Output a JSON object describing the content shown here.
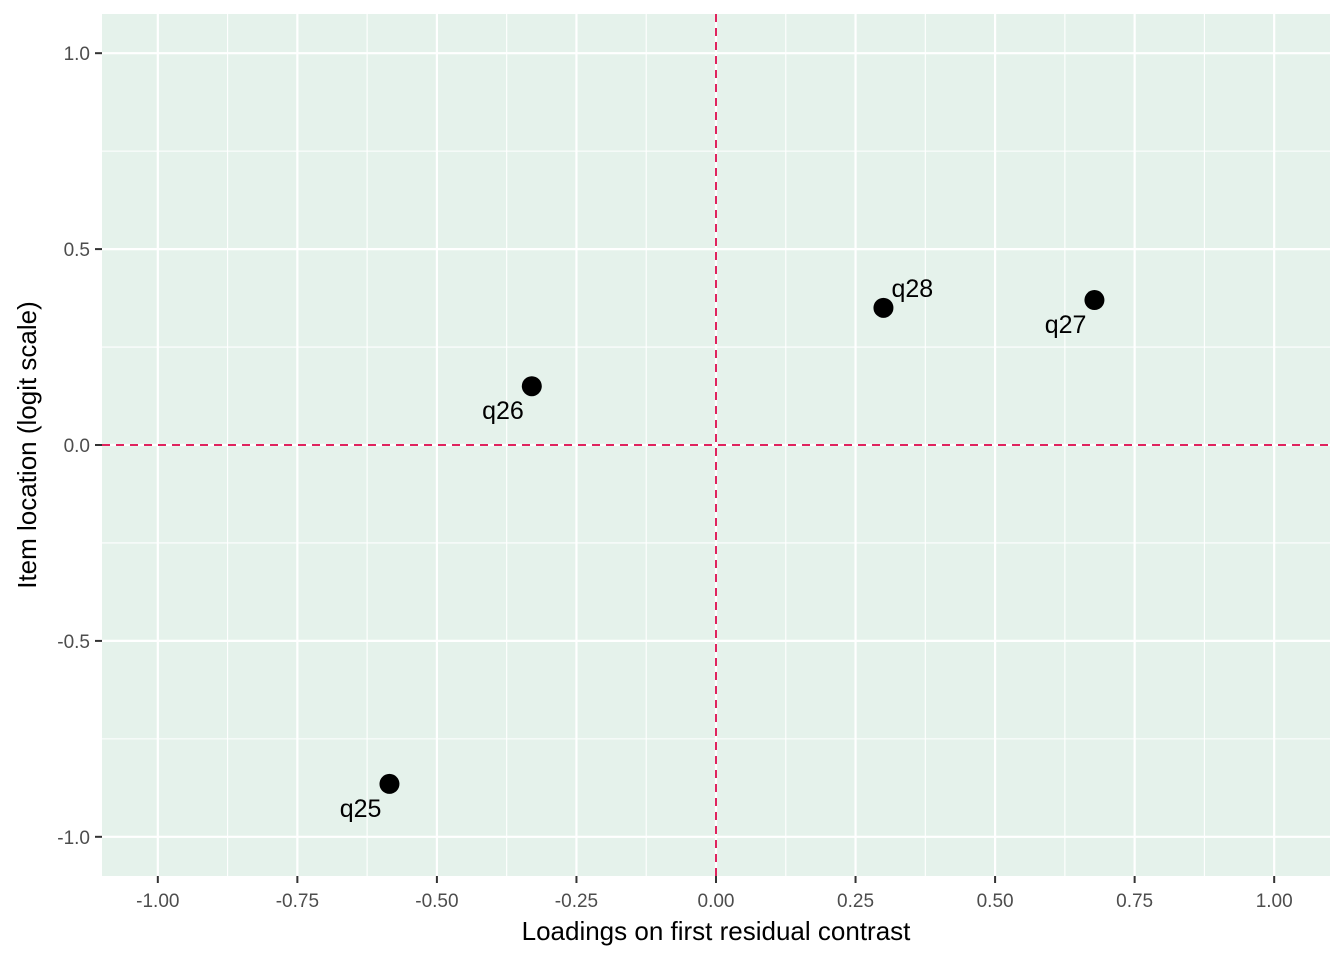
{
  "chart_data": {
    "type": "scatter",
    "title": "",
    "xlabel": "Loadings on first residual contrast",
    "ylabel": "Item location (logit scale)",
    "xlim": [
      -1.1,
      1.1
    ],
    "ylim": [
      -1.1,
      1.1
    ],
    "x_ticks": [
      -1.0,
      -0.75,
      -0.5,
      -0.25,
      0.0,
      0.25,
      0.5,
      0.75,
      1.0
    ],
    "x_tick_labels": [
      "-1.00",
      "-0.75",
      "-0.50",
      "-0.25",
      "0.00",
      "0.25",
      "0.50",
      "0.75",
      "1.00"
    ],
    "y_ticks": [
      -1.0,
      -0.5,
      0.0,
      0.5,
      1.0
    ],
    "y_tick_labels": [
      "-1.0",
      "-0.5",
      "0.0",
      "0.5",
      "1.0"
    ],
    "grid": true,
    "reference_lines": {
      "x": 0,
      "y": 0,
      "style": "dashed",
      "color": "#e0245e"
    },
    "points": [
      {
        "label": "q25",
        "x": -0.585,
        "y": -0.865,
        "label_side": "below-left"
      },
      {
        "label": "q26",
        "x": -0.33,
        "y": 0.15,
        "label_side": "below-left"
      },
      {
        "label": "q27",
        "x": 0.678,
        "y": 0.37,
        "label_side": "below-left"
      },
      {
        "label": "q28",
        "x": 0.3,
        "y": 0.35,
        "label_side": "above-right"
      }
    ]
  },
  "colors": {
    "panel_background": "#e5f2eb",
    "grid": "#ffffff",
    "point": "#000000",
    "reference_line": "#e0245e",
    "tick": "#333333"
  }
}
